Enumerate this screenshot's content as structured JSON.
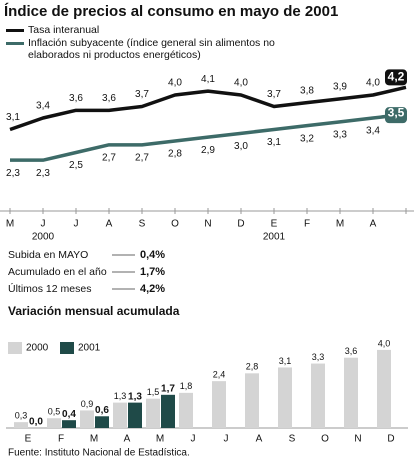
{
  "title": "Índice de precios al consumo en mayo de 2001",
  "chart_data": [
    {
      "type": "line",
      "categories": [
        "M",
        "J",
        "J",
        "A",
        "S",
        "O",
        "N",
        "D",
        "E",
        "F",
        "M",
        "A",
        null
      ],
      "year_labels": [
        {
          "label": "2000",
          "category": 1
        },
        {
          "label": "2001",
          "category": 8
        }
      ],
      "ylim": [
        1.6,
        4.6
      ],
      "series": [
        {
          "name": "Tasa interanual",
          "color": "#111111",
          "values": [
            3.1,
            3.4,
            3.6,
            3.6,
            3.7,
            4.0,
            4.1,
            4.0,
            3.7,
            3.8,
            3.9,
            4.0,
            4.2
          ],
          "value_labels": [
            "3,1",
            "3,4",
            "3,6",
            "3,6",
            "3,7",
            "4,0",
            "4,1",
            "4,0",
            "3,7",
            "3,8",
            "3,9",
            "4,0",
            "4,2"
          ]
        },
        {
          "name": "Inflación subyacente (índice general sin alimentos no elaborados ni productos energéticos)",
          "color": "#3d6b68",
          "values": [
            2.3,
            2.3,
            2.5,
            2.7,
            2.7,
            2.8,
            2.9,
            3.0,
            3.1,
            3.2,
            3.3,
            3.4,
            3.5
          ],
          "value_labels": [
            "2,3",
            "2,3",
            "2,5",
            "2,7",
            "2,7",
            "2,8",
            "2,9",
            "3,0",
            "3,1",
            "3,2",
            "3,3",
            "3,4",
            "3,5"
          ]
        }
      ]
    },
    {
      "type": "bar",
      "title": "Variación mensual acumulada",
      "categories": [
        "E",
        "F",
        "M",
        "A",
        "M",
        "J",
        "J",
        "A",
        "S",
        "O",
        "N",
        "D"
      ],
      "ylim": [
        0,
        4.2
      ],
      "series": [
        {
          "name": "2000",
          "color": "#d4d4d4",
          "values": [
            0.3,
            0.5,
            0.9,
            1.3,
            1.5,
            1.8,
            2.4,
            2.8,
            3.1,
            3.3,
            3.6,
            4.0
          ],
          "value_labels": [
            "0,3",
            "0,5",
            "0,9",
            "1,3",
            "1,5",
            "1,8",
            "2,4",
            "2,8",
            "3,1",
            "3,3",
            "3,6",
            "4,0"
          ]
        },
        {
          "name": "2001",
          "color": "#1f4a48",
          "values": [
            0.0,
            0.4,
            0.6,
            1.3,
            1.7,
            null,
            null,
            null,
            null,
            null,
            null,
            null
          ],
          "value_labels": [
            "0,0",
            "0,4",
            "0,6",
            "1,3",
            "1,7",
            null,
            null,
            null,
            null,
            null,
            null,
            null
          ]
        }
      ]
    }
  ],
  "summary": [
    {
      "label": "Subida en MAYO",
      "value": "0,4%"
    },
    {
      "label": "Acumulado en el año",
      "value": "1,7%"
    },
    {
      "label": "Últimos 12 meses",
      "value": "4,2%"
    }
  ],
  "source": "Fuente: Instituto Nacional de Estadística."
}
